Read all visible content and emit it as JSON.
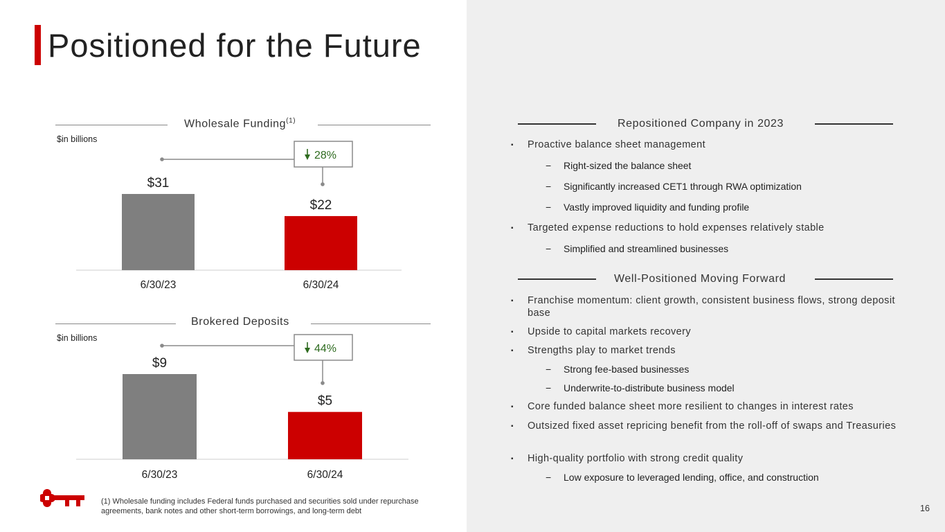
{
  "page": {
    "title": "Positioned for the Future",
    "page_number": "16",
    "footnote": "(1) Wholesale funding includes Federal funds purchased and securities sold under repurchase agreements, bank notes and other short-term borrowings, and long-term debt"
  },
  "colors": {
    "accent": "#cc0000",
    "prior_bar": "#7f7f7f",
    "current_bar": "#cc0000",
    "decline": "#2e6b1f"
  },
  "chart_data": [
    {
      "type": "bar",
      "title": "Wholesale Funding",
      "title_superscript": "(1)",
      "unit_label": "$in billions",
      "categories": [
        "6/30/23",
        "6/30/24"
      ],
      "values": [
        31,
        22
      ],
      "data_labels": [
        "$31",
        "$22"
      ],
      "change": "28%",
      "change_direction": "down",
      "ylim": [
        0,
        31
      ],
      "grid": false
    },
    {
      "type": "bar",
      "title": "Brokered Deposits",
      "unit_label": "$in billions",
      "categories": [
        "6/30/23",
        "6/30/24"
      ],
      "values": [
        9,
        5
      ],
      "data_labels": [
        "$9",
        "$5"
      ],
      "change": "44%",
      "change_direction": "down",
      "ylim": [
        0,
        9
      ],
      "grid": false
    }
  ],
  "sections": [
    {
      "heading": "Repositioned Company in 2023",
      "items": [
        {
          "level": 1,
          "text": "Proactive balance sheet management"
        },
        {
          "level": 2,
          "text": "Right-sized the balance sheet"
        },
        {
          "level": 2,
          "text": "Significantly increased CET1 through RWA optimization"
        },
        {
          "level": 2,
          "text": "Vastly improved liquidity and funding profile"
        },
        {
          "level": 1,
          "text": "Targeted expense reductions to hold expenses relatively stable"
        },
        {
          "level": 2,
          "text": "Simplified and streamlined businesses"
        }
      ]
    },
    {
      "heading": "Well-Positioned Moving Forward",
      "items": [
        {
          "level": 1,
          "text": "Franchise momentum: client growth, consistent business flows, strong deposit base"
        },
        {
          "level": 1,
          "text": "Upside to capital markets recovery"
        },
        {
          "level": 1,
          "text": "Strengths play to market trends"
        },
        {
          "level": 2,
          "text": "Strong fee-based businesses"
        },
        {
          "level": 2,
          "text": "Underwrite-to-distribute business model"
        },
        {
          "level": 1,
          "text": "Core funded balance sheet more resilient to changes in interest rates"
        },
        {
          "level": 1,
          "text": "Outsized fixed asset repricing benefit from the roll-off of swaps and Treasuries"
        },
        {
          "level": 1,
          "text": "High-quality portfolio with strong credit quality"
        },
        {
          "level": 2,
          "text": "Low exposure to leveraged lending, office, and construction"
        }
      ]
    }
  ]
}
